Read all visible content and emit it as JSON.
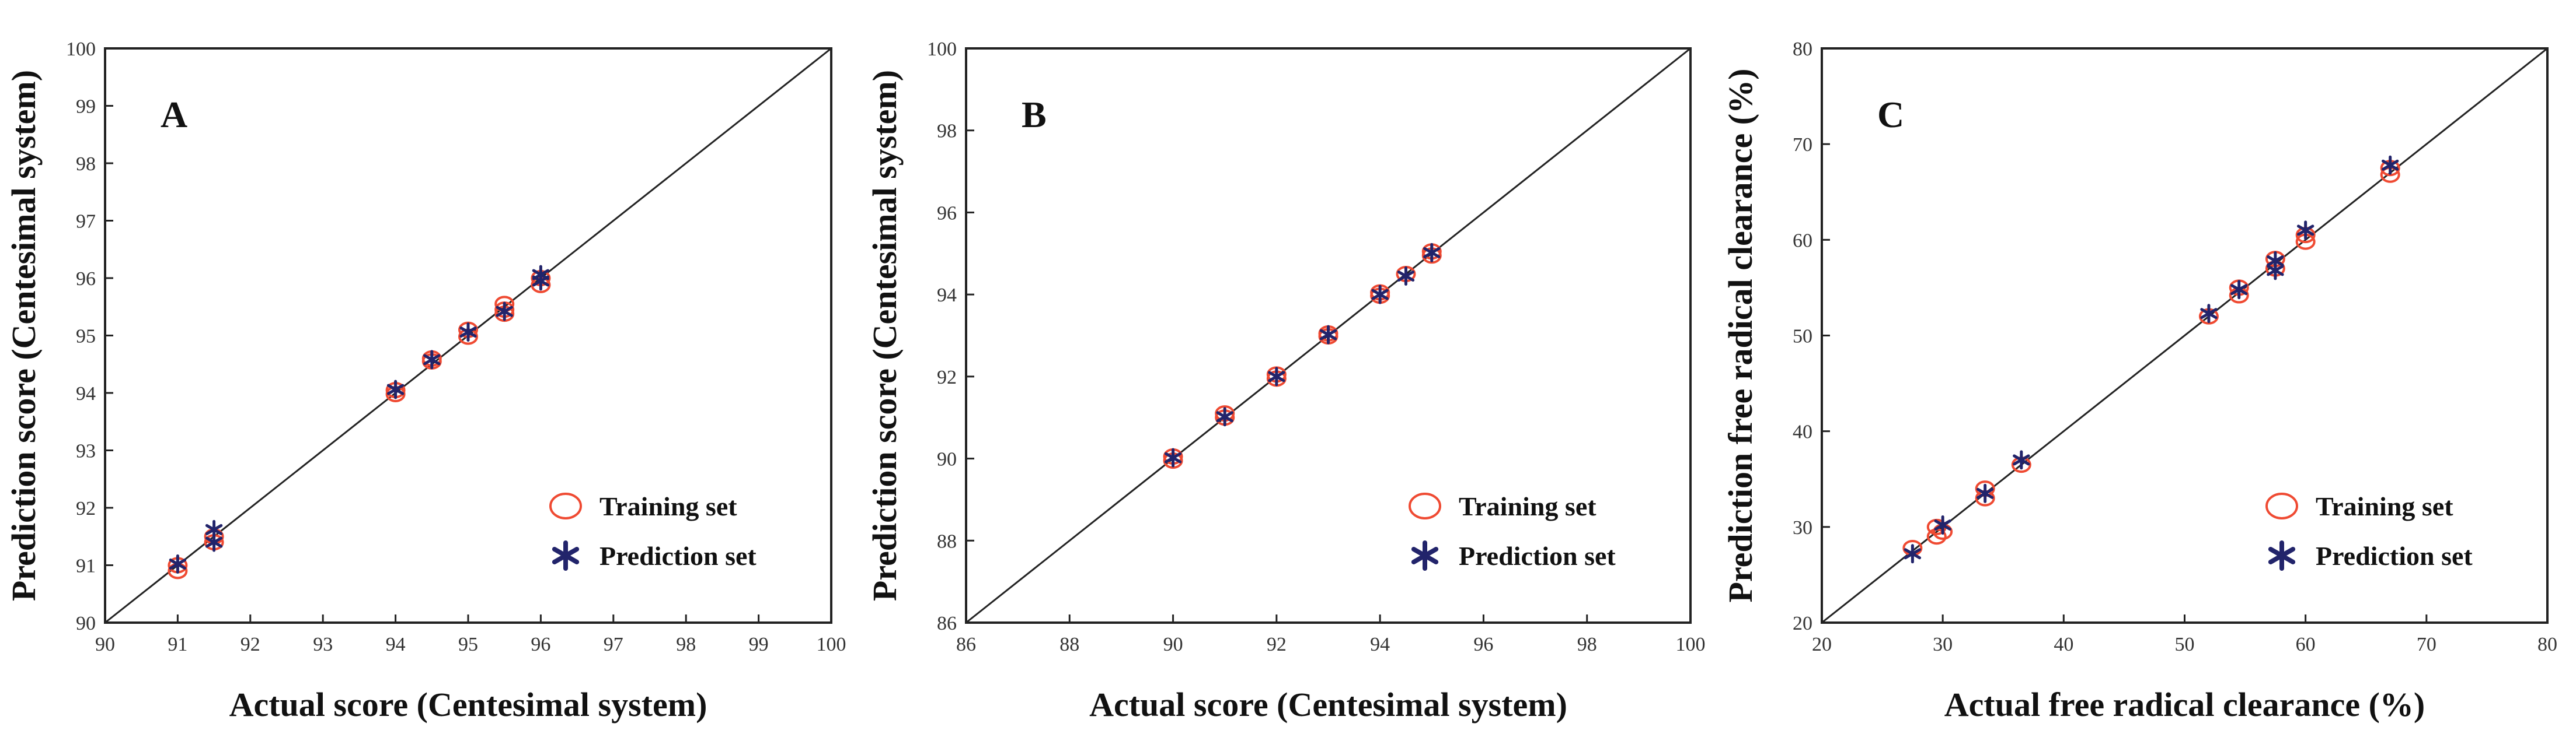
{
  "colors": {
    "training": "#ef4a32",
    "prediction": "#22246b",
    "axis": "#222222"
  },
  "chart_data": [
    {
      "type": "scatter",
      "panel": "A",
      "xlabel": "Actual score (Centesimal system)",
      "ylabel": "Prediction score (Centesimal system)",
      "xlim": [
        90,
        100
      ],
      "ylim": [
        90,
        100
      ],
      "xticks": [
        90,
        91,
        92,
        93,
        94,
        95,
        96,
        97,
        98,
        99,
        100
      ],
      "yticks": [
        90,
        91,
        92,
        93,
        94,
        95,
        96,
        97,
        98,
        99,
        100
      ],
      "xtick_labels": [
        "90",
        "91",
        "92",
        "93",
        "94",
        "95",
        "96",
        "97",
        "98",
        "99",
        "100"
      ],
      "ytick_labels": [
        "90",
        "91",
        "92",
        "93",
        "94",
        "95",
        "96",
        "97",
        "98",
        "99",
        "100"
      ],
      "diagonal": true,
      "grid": false,
      "legend_position": "bottom-right",
      "series": [
        {
          "name": "Training set",
          "marker": "circle",
          "x": [
            91,
            91,
            91.5,
            91.5,
            94,
            94,
            94.5,
            94.5,
            95,
            95,
            95.5,
            95.5,
            95.5,
            96,
            96
          ],
          "y": [
            91.0,
            90.9,
            91.5,
            91.4,
            94.05,
            93.98,
            94.6,
            94.55,
            95.1,
            94.98,
            95.55,
            95.45,
            95.38,
            96.0,
            95.88
          ]
        },
        {
          "name": "Prediction set",
          "marker": "asterisk",
          "x": [
            91,
            91.5,
            91.5,
            94,
            94.5,
            95,
            95.5,
            96,
            96
          ],
          "y": [
            91.02,
            91.62,
            91.4,
            94.06,
            94.58,
            95.06,
            95.42,
            96.06,
            95.95
          ]
        }
      ]
    },
    {
      "type": "scatter",
      "panel": "B",
      "xlabel": "Actual score (Centesimal system)",
      "ylabel": "Prediction score (Centesimal system)",
      "xlim": [
        86,
        100
      ],
      "ylim": [
        86,
        100
      ],
      "xticks": [
        86,
        88,
        90,
        92,
        94,
        96,
        98,
        100
      ],
      "yticks": [
        86,
        88,
        90,
        92,
        94,
        96,
        98,
        100
      ],
      "xtick_labels": [
        "86",
        "88",
        "90",
        "92",
        "94",
        "96",
        "98",
        "100"
      ],
      "ytick_labels": [
        "86",
        "88",
        "90",
        "92",
        "94",
        "96",
        "98",
        "100"
      ],
      "diagonal": true,
      "grid": false,
      "legend_position": "bottom-right",
      "series": [
        {
          "name": "Training set",
          "marker": "circle",
          "x": [
            90,
            90,
            91,
            91,
            92,
            92,
            93,
            93,
            94,
            94,
            94.5,
            95,
            95
          ],
          "y": [
            90.05,
            89.95,
            91.1,
            91.0,
            92.05,
            91.95,
            93.05,
            92.98,
            94.05,
            93.97,
            94.5,
            95.05,
            94.95
          ]
        },
        {
          "name": "Prediction set",
          "marker": "asterisk",
          "x": [
            90,
            91,
            92,
            93,
            94,
            94.5,
            95
          ],
          "y": [
            90.02,
            91.02,
            92.0,
            93.02,
            94.0,
            94.45,
            95.02
          ]
        }
      ]
    },
    {
      "type": "scatter",
      "panel": "C",
      "xlabel": "Actual free radical clearance (%)",
      "ylabel": "Prediction free radical clearance (%)",
      "xlim": [
        20,
        80
      ],
      "ylim": [
        20,
        80
      ],
      "xticks": [
        20,
        30,
        40,
        50,
        60,
        70,
        80
      ],
      "yticks": [
        20,
        30,
        40,
        50,
        60,
        70,
        80
      ],
      "xtick_labels": [
        "20",
        "30",
        "40",
        "50",
        "60",
        "70",
        "80"
      ],
      "ytick_labels": [
        "20",
        "30",
        "40",
        "50",
        "60",
        "70",
        "80"
      ],
      "diagonal": true,
      "grid": false,
      "legend_position": "bottom-right",
      "series": [
        {
          "name": "Training set",
          "marker": "circle",
          "x": [
            27.5,
            29.5,
            29.5,
            30,
            33.5,
            33.5,
            36.5,
            52,
            54.5,
            54.5,
            57.5,
            57.5,
            60,
            60,
            67,
            67
          ],
          "y": [
            27.8,
            29.0,
            30.0,
            29.5,
            33.0,
            34.0,
            36.5,
            52.0,
            54.2,
            55.0,
            57.0,
            58.0,
            59.8,
            60.5,
            66.8,
            67.5
          ]
        },
        {
          "name": "Prediction set",
          "marker": "asterisk",
          "x": [
            27.5,
            30,
            33.5,
            36.5,
            52,
            54.5,
            57.5,
            57.5,
            60,
            67
          ],
          "y": [
            27.2,
            30.2,
            33.5,
            37.0,
            52.3,
            54.8,
            56.8,
            57.8,
            61.0,
            67.8
          ]
        }
      ]
    }
  ]
}
